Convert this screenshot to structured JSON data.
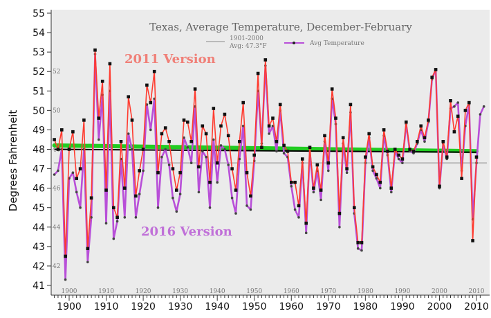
{
  "chart_data": {
    "type": "line",
    "title": "Texas, Average Temperature, December-February",
    "ylabel": "Degrees Fahrenheit",
    "xlabel": "",
    "xlim": [
      1895,
      2011
    ],
    "ylim": [
      41,
      55
    ],
    "y_ticks": [
      "41",
      "42",
      "43",
      "44",
      "45",
      "46",
      "47",
      "48",
      "49",
      "50",
      "51",
      "52",
      "53",
      "54",
      "55"
    ],
    "x_ticks": [
      "1900",
      "1910",
      "1920",
      "1930",
      "1940",
      "1950",
      "1960",
      "1970",
      "1980",
      "1990",
      "2000",
      "2010"
    ],
    "inner_x_ticks": [
      "1900",
      "1910",
      "1920",
      "1930",
      "1940",
      "1950",
      "1960",
      "1970",
      "1980",
      "1990",
      "2000",
      "2010"
    ],
    "inner_y_ticks": [
      "52",
      "50",
      "48",
      "46",
      "44",
      "42"
    ],
    "grid": false,
    "legend": {
      "baseline_label": "1901-2000",
      "baseline_avg": "Avg: 47.3°F",
      "series_label": "Avg Temperature"
    },
    "annotations": {
      "version_2011": "2011 Version",
      "version_2016": "2016 Version"
    },
    "colors": {
      "v2011": "#ff3b2f",
      "v2016": "#b84fd8",
      "trend_green": "#22cc22",
      "trend_black": "#000000",
      "baseline": "#888888",
      "plot_bg": "#ebebeb",
      "label_2011": "#f08078",
      "label_2016": "#c070d8"
    },
    "baseline_value": 47.3,
    "trend_2011": [
      [
        1896,
        48.2
      ],
      [
        2010,
        47.9
      ]
    ],
    "trend_2016": [
      [
        1896,
        48.0
      ],
      [
        2010,
        47.85
      ]
    ],
    "series": [
      {
        "name": "2011 Version",
        "x": [
          1896,
          1897,
          1898,
          1899,
          1900,
          1901,
          1902,
          1903,
          1904,
          1905,
          1906,
          1907,
          1908,
          1909,
          1910,
          1911,
          1912,
          1913,
          1914,
          1915,
          1916,
          1917,
          1918,
          1919,
          1920,
          1921,
          1922,
          1923,
          1924,
          1925,
          1926,
          1927,
          1928,
          1929,
          1930,
          1931,
          1932,
          1933,
          1934,
          1935,
          1936,
          1937,
          1938,
          1939,
          1940,
          1941,
          1942,
          1943,
          1944,
          1945,
          1946,
          1947,
          1948,
          1949,
          1950,
          1951,
          1952,
          1953,
          1954,
          1955,
          1956,
          1957,
          1958,
          1959,
          1960,
          1961,
          1962,
          1963,
          1964,
          1965,
          1966,
          1967,
          1968,
          1969,
          1970,
          1971,
          1972,
          1973,
          1974,
          1975,
          1976,
          1977,
          1978,
          1979,
          1980,
          1981,
          1982,
          1983,
          1984,
          1985,
          1986,
          1987,
          1988,
          1989,
          1990,
          1991,
          1992,
          1993,
          1994,
          1995,
          1996,
          1997,
          1998,
          1999,
          2000,
          2001,
          2002,
          2003,
          2004,
          2005,
          2006,
          2007,
          2008,
          2009,
          2010
        ],
        "values": [
          48.5,
          48.0,
          49.0,
          42.5,
          48.0,
          48.9,
          46.5,
          47.0,
          49.5,
          42.9,
          45.5,
          53.1,
          49.6,
          51.5,
          45.9,
          52.4,
          45.0,
          44.5,
          48.4,
          46.0,
          50.7,
          49.5,
          45.6,
          46.9,
          48.0,
          51.3,
          50.4,
          52.0,
          46.8,
          48.8,
          49.1,
          48.4,
          47.0,
          45.9,
          46.8,
          49.5,
          49.4,
          48.4,
          51.1,
          47.1,
          49.2,
          48.8,
          46.3,
          50.1,
          47.3,
          49.2,
          49.8,
          48.7,
          47.0,
          45.9,
          48.4,
          50.4,
          46.8,
          45.6,
          47.7,
          51.9,
          48.1,
          52.6,
          49.2,
          49.6,
          48.4,
          50.3,
          48.2,
          47.9,
          46.3,
          46.3,
          45.1,
          47.5,
          44.2,
          48.1,
          46.0,
          47.2,
          45.9,
          48.7,
          47.3,
          51.1,
          49.6,
          44.7,
          48.6,
          47.0,
          50.3,
          45.0,
          43.2,
          43.2,
          47.6,
          48.8,
          47.1,
          46.7,
          46.3,
          49.0,
          47.9,
          46.0,
          48.0,
          47.7,
          47.5,
          49.4,
          48.0,
          47.9,
          48.4,
          49.2,
          48.6,
          49.5,
          51.7,
          52.1,
          46.1,
          48.4,
          47.6,
          50.5,
          48.9,
          49.7,
          46.5,
          50.0,
          50.4,
          43.3,
          47.6
        ],
        "marker": "square-black"
      },
      {
        "name": "2016 Version",
        "x": [
          1896,
          1897,
          1898,
          1899,
          1900,
          1901,
          1902,
          1903,
          1904,
          1905,
          1906,
          1907,
          1908,
          1909,
          1910,
          1911,
          1912,
          1913,
          1914,
          1915,
          1916,
          1917,
          1918,
          1919,
          1920,
          1921,
          1922,
          1923,
          1924,
          1925,
          1926,
          1927,
          1928,
          1929,
          1930,
          1931,
          1932,
          1933,
          1934,
          1935,
          1936,
          1937,
          1938,
          1939,
          1940,
          1941,
          1942,
          1943,
          1944,
          1945,
          1946,
          1947,
          1948,
          1949,
          1950,
          1951,
          1952,
          1953,
          1954,
          1955,
          1956,
          1957,
          1958,
          1959,
          1960,
          1961,
          1962,
          1963,
          1964,
          1965,
          1966,
          1967,
          1968,
          1969,
          1970,
          1971,
          1972,
          1973,
          1974,
          1975,
          1976,
          1977,
          1978,
          1979,
          1980,
          1981,
          1982,
          1983,
          1984,
          1985,
          1986,
          1987,
          1988,
          1989,
          1990,
          1991,
          1992,
          1993,
          1994,
          1995,
          1996,
          1997,
          1998,
          1999,
          2000,
          2001,
          2002,
          2003,
          2004,
          2005,
          2006,
          2007,
          2008,
          2009,
          2010,
          2011,
          2012
        ],
        "values": [
          46.7,
          46.9,
          48.0,
          41.3,
          46.5,
          46.8,
          45.8,
          45.0,
          48.0,
          42.2,
          44.5,
          52.9,
          48.5,
          50.8,
          44.2,
          51.0,
          43.4,
          44.3,
          47.5,
          44.5,
          48.8,
          48.0,
          44.5,
          45.7,
          46.9,
          50.3,
          49.0,
          50.6,
          45.0,
          47.6,
          48.0,
          47.2,
          45.5,
          44.8,
          45.7,
          48.6,
          48.1,
          47.3,
          50.2,
          45.8,
          47.9,
          47.6,
          45.0,
          48.5,
          46.3,
          48.2,
          48.0,
          47.2,
          45.5,
          44.7,
          47.5,
          49.2,
          45.1,
          44.9,
          47.4,
          51.0,
          48.3,
          52.3,
          48.8,
          49.2,
          47.9,
          50.0,
          47.8,
          47.6,
          46.1,
          44.9,
          44.5,
          47.3,
          43.7,
          47.9,
          45.8,
          46.9,
          45.4,
          48.4,
          46.9,
          50.6,
          49.3,
          44.0,
          48.3,
          46.8,
          49.9,
          44.7,
          42.9,
          42.8,
          47.3,
          48.6,
          46.9,
          46.5,
          46.0,
          48.7,
          47.7,
          45.8,
          47.9,
          47.5,
          47.3,
          49.3,
          47.9,
          47.8,
          48.3,
          49.0,
          48.4,
          49.4,
          51.6,
          52.1,
          46.0,
          48.3,
          47.5,
          50.1,
          50.2,
          50.4,
          46.9,
          49.2,
          50.3,
          44.4,
          47.3,
          49.8,
          50.2
        ]
      }
    ]
  }
}
